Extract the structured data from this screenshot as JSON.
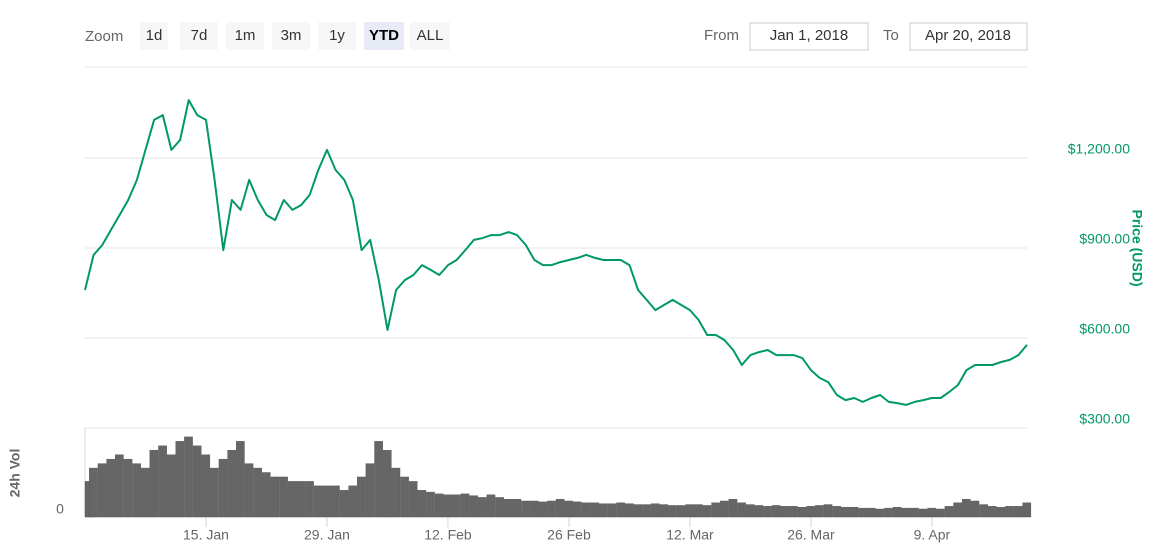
{
  "controls": {
    "zoom_label": "Zoom",
    "zoom_buttons": [
      "1d",
      "7d",
      "1m",
      "3m",
      "1y",
      "YTD",
      "ALL"
    ],
    "active_zoom": 5,
    "from_label": "From",
    "from": "Jan 1, 2018",
    "to_label": "To",
    "to": "Apr 20, 2018"
  },
  "chart_data": {
    "type": "line",
    "ylabel": "Price (USD)",
    "y2label": "24h Vol",
    "categories": [
      "1. Jan",
      "2. Jan",
      "3. Jan",
      "4. Jan",
      "5. Jan",
      "6. Jan",
      "7. Jan",
      "8. Jan",
      "9. Jan",
      "10. Jan",
      "11. Jan",
      "12. Jan",
      "13. Jan",
      "14. Jan",
      "15. Jan",
      "16. Jan",
      "17. Jan",
      "18. Jan",
      "19. Jan",
      "20. Jan",
      "21. Jan",
      "22. Jan",
      "23. Jan",
      "24. Jan",
      "25. Jan",
      "26. Jan",
      "27. Jan",
      "28. Jan",
      "29. Jan",
      "30. Jan",
      "31. Jan",
      "1. Feb",
      "2. Feb",
      "3. Feb",
      "4. Feb",
      "5. Feb",
      "6. Feb",
      "7. Feb",
      "8. Feb",
      "9. Feb",
      "10. Feb",
      "11. Feb",
      "12. Feb",
      "13. Feb",
      "14. Feb",
      "15. Feb",
      "16. Feb",
      "17. Feb",
      "18. Feb",
      "19. Feb",
      "20. Feb",
      "21. Feb",
      "22. Feb",
      "23. Feb",
      "24. Feb",
      "25. Feb",
      "26. Feb",
      "27. Feb",
      "28. Feb",
      "1. Mar",
      "2. Mar",
      "3. Mar",
      "4. Mar",
      "5. Mar",
      "6. Mar",
      "7. Mar",
      "8. Mar",
      "9. Mar",
      "10. Mar",
      "11. Mar",
      "12. Mar",
      "13. Mar",
      "14. Mar",
      "15. Mar",
      "16. Mar",
      "17. Mar",
      "18. Mar",
      "19. Mar",
      "20. Mar",
      "21. Mar",
      "22. Mar",
      "23. Mar",
      "24. Mar",
      "25. Mar",
      "26. Mar",
      "27. Mar",
      "28. Mar",
      "29. Mar",
      "30. Mar",
      "31. Mar",
      "1. Apr",
      "2. Apr",
      "3. Apr",
      "4. Apr",
      "5. Apr",
      "6. Apr",
      "7. Apr",
      "8. Apr",
      "9. Apr",
      "10. Apr",
      "11. Apr",
      "12. Apr",
      "13. Apr",
      "14. Apr",
      "15. Apr",
      "16. Apr",
      "17. Apr",
      "18. Apr",
      "19. Apr",
      "20. Apr"
    ],
    "series": [
      {
        "color": "#009966",
        "values": [
          760,
          877,
          910,
          960,
          1010,
          1060,
          1127,
          1227,
          1327,
          1343,
          1227,
          1260,
          1393,
          1343,
          1327,
          1127,
          893,
          1060,
          1027,
          1127,
          1060,
          1010,
          993,
          1060,
          1027,
          1043,
          1077,
          1160,
          1227,
          1160,
          1127,
          1060,
          893,
          927,
          793,
          627,
          760,
          793,
          810,
          843,
          827,
          810,
          843,
          860,
          893,
          927,
          933,
          943,
          943,
          953,
          943,
          910,
          860,
          843,
          843,
          853,
          860,
          867,
          877,
          867,
          860,
          860,
          860,
          843,
          760,
          727,
          693,
          710,
          727,
          710,
          693,
          660,
          610,
          610,
          593,
          560,
          510,
          543,
          553,
          560,
          543,
          543,
          543,
          533,
          493,
          467,
          453,
          410,
          393,
          400,
          387,
          400,
          410,
          387,
          383,
          377,
          387,
          393,
          400,
          400,
          420,
          443,
          493,
          510,
          510,
          510,
          520,
          527,
          543,
          577
        ]
      },
      {
        "color": "#666666",
        "axis": "y2",
        "values": [
          40,
          55,
          60,
          65,
          70,
          65,
          60,
          55,
          75,
          80,
          70,
          85,
          90,
          80,
          70,
          55,
          65,
          75,
          85,
          60,
          55,
          50,
          45,
          45,
          40,
          40,
          40,
          35,
          35,
          35,
          30,
          35,
          45,
          60,
          85,
          75,
          55,
          45,
          40,
          30,
          28,
          26,
          25,
          25,
          26,
          24,
          22,
          25,
          22,
          20,
          20,
          18,
          18,
          17,
          18,
          20,
          18,
          17,
          16,
          16,
          15,
          15,
          16,
          15,
          14,
          14,
          15,
          14,
          13,
          13,
          14,
          14,
          13,
          16,
          18,
          20,
          16,
          14,
          13,
          12,
          13,
          12,
          12,
          11,
          12,
          13,
          14,
          12,
          11,
          11,
          10,
          10,
          9,
          10,
          11,
          10,
          10,
          9,
          10,
          9,
          12,
          16,
          20,
          18,
          14,
          12,
          11,
          12,
          12,
          16
        ]
      }
    ],
    "ylim": [
      300,
      1500
    ],
    "yticks": [
      {
        "value": 300,
        "label": "$300.00"
      },
      {
        "value": 600,
        "label": "$600.00"
      },
      {
        "value": 900,
        "label": "$900.00"
      },
      {
        "value": 1200,
        "label": "$1,200.00"
      }
    ],
    "y2lim": [
      0,
      100
    ],
    "y2ticks": [
      0
    ],
    "xticks": [
      "15. Jan",
      "29. Jan",
      "12. Feb",
      {
        "value": "26. Feb",
        "label": "26 Feb"
      },
      "12. Mar",
      "26. Mar",
      "9. Apr"
    ],
    "grid": true
  }
}
